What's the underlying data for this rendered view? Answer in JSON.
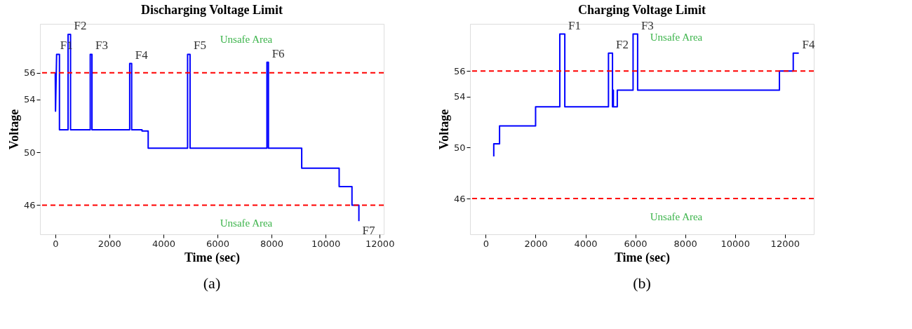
{
  "chart_data": [
    {
      "type": "line",
      "title": "Discharging Voltage Limit",
      "xlabel": "Time (sec)",
      "ylabel": "Voltage",
      "xlim": [
        -565,
        12150
      ],
      "xticks": [
        0,
        2000,
        4000,
        6000,
        8000,
        10000,
        12000
      ],
      "ylim": [
        43.8,
        59.7
      ],
      "yticks": [
        46,
        50,
        54,
        56
      ],
      "grid": false,
      "marker": "none",
      "line_style": "solid",
      "x": [
        0,
        10,
        50,
        155,
        155,
        474,
        474,
        565,
        565,
        1294,
        1294,
        1358,
        1358,
        2753,
        2753,
        2826,
        2826,
        3209,
        3209,
        3437,
        3437,
        4895,
        4895,
        4986,
        4986,
        7830,
        7830,
        7885,
        7885,
        9116,
        9116,
        10501,
        10501,
        10975,
        10975,
        11231,
        11231
      ],
      "series": [
        {
          "color": "#0000ff",
          "values": [
            56,
            53.1,
            57.4,
            57.4,
            51.7,
            51.7,
            58.9,
            58.9,
            51.7,
            51.7,
            57.4,
            57.4,
            51.7,
            51.7,
            56.7,
            56.7,
            51.7,
            51.7,
            51.6,
            51.6,
            50.3,
            50.3,
            57.4,
            57.4,
            50.3,
            50.3,
            56.8,
            56.8,
            50.3,
            50.3,
            48.8,
            48.8,
            47.4,
            47.4,
            46,
            46,
            44.8
          ]
        }
      ],
      "ref_lines": [
        {
          "axis": "y",
          "value": 56,
          "label": "Unsafe Area",
          "color": "#ff0000",
          "line_style": "dashed"
        },
        {
          "axis": "y",
          "value": 46,
          "label": "Unsafe Area",
          "color": "#ff0000",
          "line_style": "dashed"
        }
      ],
      "annotations": [
        {
          "text": "F1",
          "x": 50,
          "y": 57.4
        },
        {
          "text": "F2",
          "x": 565,
          "y": 58.9
        },
        {
          "text": "F3",
          "x": 1358,
          "y": 57.4
        },
        {
          "text": "F4",
          "x": 2826,
          "y": 56.7
        },
        {
          "text": "F5",
          "x": 4986,
          "y": 57.4
        },
        {
          "text": "F6",
          "x": 7885,
          "y": 56.8
        },
        {
          "text": "F7",
          "x": 11231,
          "y": 44.8
        },
        "(a)"
      ]
    },
    {
      "type": "line",
      "title": "Charging Voltage Limit",
      "xlabel": "Time (sec)",
      "ylabel": "Voltage",
      "xlim": [
        -630,
        13160
      ],
      "xticks": [
        0,
        2000,
        4000,
        6000,
        8000,
        10000,
        12000
      ],
      "ylim": [
        43.2,
        59.7
      ],
      "yticks": [
        46,
        50,
        54,
        56
      ],
      "grid": false,
      "marker": "none",
      "line_style": "solid",
      "x": [
        322,
        322,
        554,
        554,
        2000,
        2000,
        2971,
        2971,
        3172,
        3172,
        4924,
        4924,
        5085,
        5085,
        5120,
        5120,
        5277,
        5277,
        5911,
        5911,
        6093,
        6093,
        11782,
        11782,
        12336,
        12336,
        12558
      ],
      "series": [
        {
          "color": "#0000ff",
          "values": [
            49.3,
            50.3,
            50.3,
            51.7,
            51.7,
            53.2,
            53.2,
            58.9,
            58.9,
            53.2,
            53.2,
            57.4,
            57.4,
            53.2,
            54.5,
            53.2,
            53.2,
            54.5,
            54.5,
            58.9,
            58.9,
            54.5,
            54.5,
            56,
            56,
            57.4,
            57.4
          ]
        }
      ],
      "ref_lines": [
        {
          "axis": "y",
          "value": 56,
          "label": "Unsafe Area",
          "color": "#ff0000",
          "line_style": "dashed"
        },
        {
          "axis": "y",
          "value": 46,
          "label": "Unsafe Area",
          "color": "#ff0000",
          "line_style": "dashed"
        }
      ],
      "annotations": [
        {
          "text": "F1",
          "x": 3172,
          "y": 58.9
        },
        {
          "text": "F2",
          "x": 5085,
          "y": 57.4
        },
        {
          "text": "F3",
          "x": 6093,
          "y": 58.9
        },
        {
          "text": "F4",
          "x": 12558,
          "y": 57.4
        },
        "(b)"
      ]
    }
  ]
}
